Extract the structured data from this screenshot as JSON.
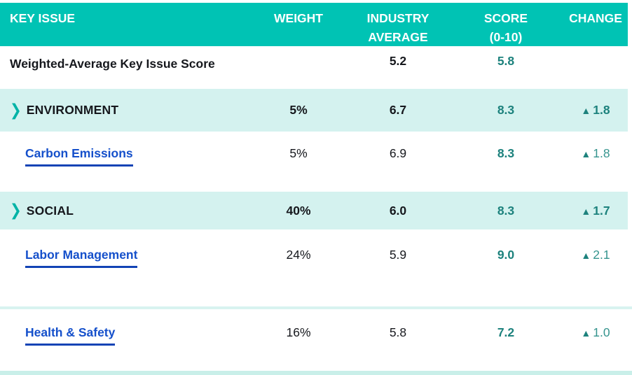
{
  "table": {
    "columns": {
      "key_issue": "KEY ISSUE",
      "weight": "WEIGHT",
      "industry_average": "INDUSTRY\nAVERAGE",
      "score": "SCORE\n(0-10)",
      "change": "CHANGE"
    },
    "rows": [
      {
        "type": "summary",
        "label": "Weighted-Average Key Issue Score",
        "weight": "",
        "industry_average": "5.2",
        "score": "5.8",
        "change": ""
      },
      {
        "type": "category",
        "label": "ENVIRONMENT",
        "weight": "5%",
        "industry_average": "6.7",
        "score": "8.3",
        "change": "1.8"
      },
      {
        "type": "link",
        "label": "Carbon Emissions",
        "weight": "5%",
        "industry_average": "6.9",
        "score": "8.3",
        "change": "1.8"
      },
      {
        "type": "category",
        "label": "SOCIAL",
        "weight": "40%",
        "industry_average": "6.0",
        "score": "8.3",
        "change": "1.7"
      },
      {
        "type": "link",
        "label": "Labor Management",
        "weight": "24%",
        "industry_average": "5.9",
        "score": "9.0",
        "change": "2.1"
      },
      {
        "type": "link",
        "label": "Health & Safety",
        "weight": "16%",
        "industry_average": "5.8",
        "score": "7.2",
        "change": "1.0"
      }
    ]
  },
  "icons": {
    "expand_chevron": "❯",
    "up_triangle": "▲"
  },
  "colors": {
    "header_teal": "#00c3b4",
    "band_teal": "#d4f2ef",
    "score_teal": "#1d827d",
    "change_teal_regular": "#35948e",
    "link_blue": "#1550cb",
    "link_underline_blue": "#1243b5",
    "text_dark": "#16181d"
  }
}
